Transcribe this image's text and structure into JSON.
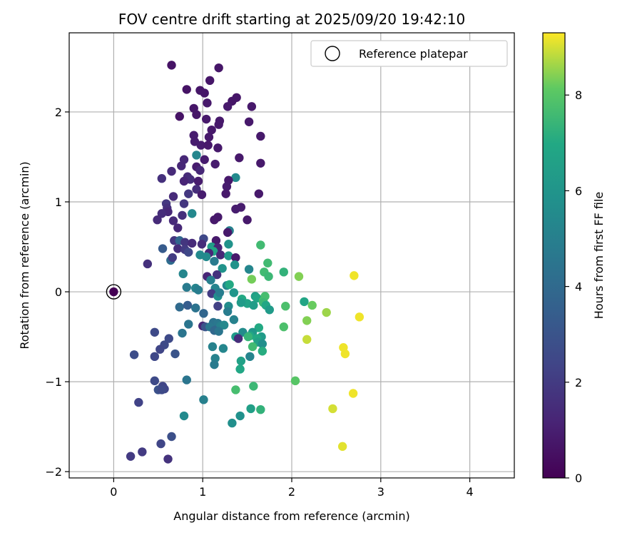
{
  "chart_data": {
    "type": "scatter",
    "title": "FOV centre drift starting at 2025/09/20 19:42:10",
    "xlabel": "Angular distance from reference (arcmin)",
    "ylabel": "Rotation from reference (arcmin)",
    "xlim": [
      -0.5,
      4.5
    ],
    "ylim": [
      -2.07,
      2.88
    ],
    "xticks": [
      0,
      1,
      2,
      3,
      4
    ],
    "xtick_labels": [
      "0",
      "1",
      "2",
      "3",
      "4"
    ],
    "yticks": [
      -2,
      -1,
      0,
      1,
      2
    ],
    "ytick_labels": [
      "−2",
      "−1",
      "0",
      "1",
      "2"
    ],
    "grid": true,
    "legend": {
      "placement": "top-right",
      "entries": [
        "Reference platepar"
      ]
    },
    "reference_point": {
      "x": 0,
      "y": 0,
      "label": "Reference platepar"
    },
    "colorbar": {
      "label": "Hours from first FF file",
      "range": [
        0,
        9.3
      ],
      "ticks": [
        0,
        2,
        4,
        6,
        8
      ],
      "tick_labels": [
        "0",
        "2",
        "4",
        "6",
        "8"
      ],
      "colormap": "viridis"
    },
    "points": [
      [
        0.0,
        0.0,
        0.0
      ],
      [
        0.65,
        2.52,
        0.6
      ],
      [
        1.18,
        2.49,
        0.7
      ],
      [
        1.08,
        2.35,
        0.7
      ],
      [
        0.82,
        2.25,
        0.6
      ],
      [
        0.97,
        2.24,
        0.7
      ],
      [
        1.02,
        2.21,
        0.7
      ],
      [
        1.38,
        2.16,
        0.7
      ],
      [
        1.33,
        2.12,
        0.7
      ],
      [
        1.28,
        2.06,
        0.8
      ],
      [
        1.55,
        2.06,
        0.8
      ],
      [
        0.9,
        2.04,
        0.7
      ],
      [
        1.05,
        2.1,
        0.8
      ],
      [
        0.74,
        1.95,
        0.6
      ],
      [
        0.93,
        1.97,
        0.7
      ],
      [
        1.04,
        1.92,
        0.8
      ],
      [
        1.19,
        1.9,
        0.8
      ],
      [
        1.18,
        1.86,
        0.8
      ],
      [
        1.52,
        1.89,
        0.8
      ],
      [
        1.1,
        1.8,
        0.8
      ],
      [
        0.9,
        1.74,
        0.9
      ],
      [
        1.07,
        1.72,
        0.8
      ],
      [
        1.65,
        1.73,
        0.8
      ],
      [
        0.91,
        1.67,
        0.9
      ],
      [
        0.98,
        1.63,
        0.9
      ],
      [
        1.06,
        1.63,
        0.8
      ],
      [
        1.17,
        1.6,
        0.8
      ],
      [
        1.41,
        1.49,
        0.8
      ],
      [
        0.93,
        1.52,
        5.3
      ],
      [
        0.79,
        1.47,
        1.3
      ],
      [
        1.02,
        1.47,
        0.9
      ],
      [
        1.14,
        1.42,
        0.9
      ],
      [
        1.65,
        1.43,
        0.8
      ],
      [
        0.76,
        1.4,
        1.3
      ],
      [
        0.93,
        1.39,
        0.9
      ],
      [
        0.97,
        1.35,
        1.3
      ],
      [
        0.65,
        1.34,
        1.4
      ],
      [
        1.37,
        1.27,
        5.5
      ],
      [
        0.54,
        1.26,
        1.6
      ],
      [
        0.83,
        1.28,
        1.4
      ],
      [
        0.86,
        1.25,
        1.5
      ],
      [
        0.79,
        1.23,
        1.2
      ],
      [
        0.95,
        1.23,
        0.9
      ],
      [
        1.29,
        1.24,
        0.8
      ],
      [
        1.27,
        1.17,
        0.9
      ],
      [
        0.93,
        1.14,
        1.5
      ],
      [
        1.26,
        1.09,
        0.8
      ],
      [
        1.63,
        1.09,
        0.8
      ],
      [
        0.67,
        1.06,
        1.4
      ],
      [
        0.84,
        1.09,
        1.9
      ],
      [
        0.99,
        1.08,
        0.9
      ],
      [
        0.79,
        0.98,
        1.8
      ],
      [
        0.59,
        0.98,
        1.9
      ],
      [
        0.6,
        0.93,
        1.6
      ],
      [
        0.61,
        0.89,
        1.3
      ],
      [
        0.54,
        0.87,
        1.5
      ],
      [
        1.43,
        0.94,
        0.9
      ],
      [
        1.37,
        0.92,
        0.9
      ],
      [
        0.88,
        0.87,
        5.4
      ],
      [
        0.77,
        0.85,
        1.6
      ],
      [
        0.49,
        0.8,
        1.4
      ],
      [
        1.17,
        0.83,
        0.8
      ],
      [
        1.13,
        0.8,
        0.8
      ],
      [
        1.5,
        0.8,
        0.8
      ],
      [
        0.67,
        0.79,
        1.4
      ],
      [
        0.72,
        0.71,
        1.3
      ],
      [
        1.3,
        0.68,
        5.0
      ],
      [
        1.28,
        0.66,
        0.8
      ],
      [
        1.01,
        0.59,
        2.5
      ],
      [
        1.15,
        0.57,
        0.8
      ],
      [
        0.68,
        0.57,
        1.8
      ],
      [
        0.74,
        0.57,
        3.8
      ],
      [
        0.8,
        0.55,
        1.8
      ],
      [
        0.88,
        0.54,
        1.4
      ],
      [
        0.99,
        0.53,
        1.5
      ],
      [
        1.29,
        0.53,
        5.9
      ],
      [
        1.65,
        0.52,
        7.6
      ],
      [
        1.1,
        0.5,
        6.4
      ],
      [
        1.17,
        0.49,
        1.2
      ],
      [
        1.12,
        0.45,
        6.8
      ],
      [
        0.55,
        0.48,
        3.3
      ],
      [
        0.72,
        0.48,
        1.5
      ],
      [
        0.8,
        0.47,
        2.0
      ],
      [
        0.84,
        0.44,
        2.5
      ],
      [
        1.07,
        0.43,
        1.3
      ],
      [
        0.97,
        0.41,
        5.5
      ],
      [
        1.2,
        0.41,
        1.3
      ],
      [
        1.29,
        0.4,
        6.1
      ],
      [
        1.37,
        0.38,
        0.8
      ],
      [
        1.04,
        0.39,
        5.5
      ],
      [
        1.13,
        0.34,
        4.8
      ],
      [
        0.38,
        0.31,
        1.6
      ],
      [
        0.64,
        0.35,
        4.1
      ],
      [
        0.66,
        0.38,
        2.0
      ],
      [
        1.36,
        0.3,
        5.9
      ],
      [
        1.73,
        0.32,
        7.6
      ],
      [
        1.22,
        0.26,
        5.9
      ],
      [
        1.52,
        0.25,
        5.3
      ],
      [
        1.69,
        0.22,
        7.6
      ],
      [
        1.91,
        0.22,
        7.3
      ],
      [
        0.78,
        0.2,
        5.3
      ],
      [
        1.05,
        0.17,
        1.2
      ],
      [
        1.16,
        0.19,
        1.7
      ],
      [
        1.74,
        0.17,
        7.5
      ],
      [
        2.08,
        0.17,
        8.4
      ],
      [
        2.7,
        0.18,
        9.2
      ],
      [
        1.55,
        0.14,
        8.3
      ],
      [
        1.09,
        0.13,
        5.0
      ],
      [
        0.92,
        0.04,
        5.2
      ],
      [
        0.95,
        0.02,
        4.9
      ],
      [
        0.82,
        0.05,
        4.8
      ],
      [
        1.27,
        0.07,
        5.4
      ],
      [
        1.3,
        0.08,
        7.0
      ],
      [
        1.14,
        0.04,
        5.2
      ],
      [
        1.35,
        -0.01,
        6.0
      ],
      [
        1.1,
        -0.02,
        2.0
      ],
      [
        1.17,
        -0.05,
        5.8
      ],
      [
        1.19,
        -0.01,
        4.9
      ],
      [
        1.44,
        -0.08,
        7.0
      ],
      [
        1.59,
        -0.05,
        6.5
      ],
      [
        1.61,
        -0.07,
        6.8
      ],
      [
        1.7,
        -0.05,
        7.7
      ],
      [
        1.68,
        -0.1,
        7.7
      ],
      [
        2.14,
        -0.11,
        6.8
      ],
      [
        1.68,
        -0.12,
        7.5
      ],
      [
        1.71,
        -0.15,
        6.9
      ],
      [
        2.23,
        -0.15,
        8.2
      ],
      [
        2.39,
        -0.23,
        8.6
      ],
      [
        2.76,
        -0.28,
        9.2
      ],
      [
        1.5,
        -0.13,
        6.7
      ],
      [
        1.75,
        -0.2,
        6.3
      ],
      [
        1.57,
        -0.15,
        6.4
      ],
      [
        1.43,
        -0.12,
        6.3
      ],
      [
        1.93,
        -0.16,
        7.8
      ],
      [
        0.74,
        -0.17,
        4.0
      ],
      [
        0.83,
        -0.15,
        3.4
      ],
      [
        0.92,
        -0.18,
        4.4
      ],
      [
        1.17,
        -0.16,
        2.2
      ],
      [
        1.29,
        -0.16,
        5.6
      ],
      [
        1.28,
        -0.22,
        4.9
      ],
      [
        2.17,
        -0.32,
        8.4
      ],
      [
        1.01,
        -0.24,
        3.8
      ],
      [
        1.35,
        -0.31,
        5.1
      ],
      [
        1.12,
        -0.34,
        4.4
      ],
      [
        1.17,
        -0.35,
        4.6
      ],
      [
        1.0,
        -0.38,
        1.3
      ],
      [
        1.03,
        -0.39,
        3.0
      ],
      [
        1.08,
        -0.39,
        4.6
      ],
      [
        1.15,
        -0.42,
        4.2
      ],
      [
        1.2,
        -0.38,
        5.0
      ],
      [
        1.24,
        -0.37,
        5.4
      ],
      [
        1.63,
        -0.4,
        7.0
      ],
      [
        1.91,
        -0.39,
        7.8
      ],
      [
        0.84,
        -0.36,
        4.5
      ],
      [
        1.13,
        -0.43,
        3.9
      ],
      [
        1.18,
        -0.44,
        4.5
      ],
      [
        1.45,
        -0.45,
        5.6
      ],
      [
        1.56,
        -0.45,
        6.1
      ],
      [
        1.53,
        -0.49,
        6.9
      ],
      [
        1.37,
        -0.5,
        6.3
      ],
      [
        1.4,
        -0.52,
        1.5
      ],
      [
        1.51,
        -0.5,
        7.4
      ],
      [
        1.66,
        -0.5,
        6.3
      ],
      [
        1.61,
        -0.52,
        7.0
      ],
      [
        0.77,
        -0.46,
        4.5
      ],
      [
        0.46,
        -0.45,
        2.6
      ],
      [
        0.62,
        -0.52,
        2.6
      ],
      [
        2.17,
        -0.53,
        8.9
      ],
      [
        1.62,
        -0.56,
        6.6
      ],
      [
        1.67,
        -0.58,
        5.7
      ],
      [
        1.56,
        -0.61,
        7.6
      ],
      [
        2.58,
        -0.62,
        9.2
      ],
      [
        1.67,
        -0.66,
        7.1
      ],
      [
        2.6,
        -0.69,
        9.2
      ],
      [
        1.23,
        -0.63,
        5.3
      ],
      [
        1.11,
        -0.61,
        5.1
      ],
      [
        0.57,
        -0.59,
        2.6
      ],
      [
        0.52,
        -0.64,
        2.4
      ],
      [
        0.69,
        -0.69,
        3.0
      ],
      [
        0.23,
        -0.7,
        2.7
      ],
      [
        0.46,
        -0.72,
        2.5
      ],
      [
        1.53,
        -0.72,
        5.2
      ],
      [
        1.14,
        -0.74,
        5.1
      ],
      [
        1.43,
        -0.77,
        6.6
      ],
      [
        1.13,
        -0.81,
        4.8
      ],
      [
        1.42,
        -0.86,
        6.9
      ],
      [
        0.82,
        -0.98,
        4.5
      ],
      [
        0.46,
        -0.99,
        2.6
      ],
      [
        2.04,
        -0.99,
        8.0
      ],
      [
        0.55,
        -1.05,
        2.4
      ],
      [
        0.57,
        -1.08,
        2.4
      ],
      [
        1.57,
        -1.05,
        7.5
      ],
      [
        0.5,
        -1.09,
        2.9
      ],
      [
        0.54,
        -1.09,
        2.6
      ],
      [
        1.37,
        -1.09,
        7.7
      ],
      [
        2.69,
        -1.13,
        9.2
      ],
      [
        1.01,
        -1.2,
        5.0
      ],
      [
        0.28,
        -1.23,
        2.3
      ],
      [
        2.46,
        -1.3,
        9.0
      ],
      [
        1.54,
        -1.3,
        6.5
      ],
      [
        1.65,
        -1.31,
        7.3
      ],
      [
        0.79,
        -1.38,
        5.5
      ],
      [
        1.42,
        -1.38,
        5.8
      ],
      [
        1.33,
        -1.46,
        5.7
      ],
      [
        0.53,
        -1.69,
        2.4
      ],
      [
        0.65,
        -1.61,
        2.8
      ],
      [
        2.57,
        -1.72,
        9.1
      ],
      [
        0.32,
        -1.78,
        2.0
      ],
      [
        0.19,
        -1.83,
        2.0
      ],
      [
        0.61,
        -1.86,
        1.7
      ]
    ]
  }
}
